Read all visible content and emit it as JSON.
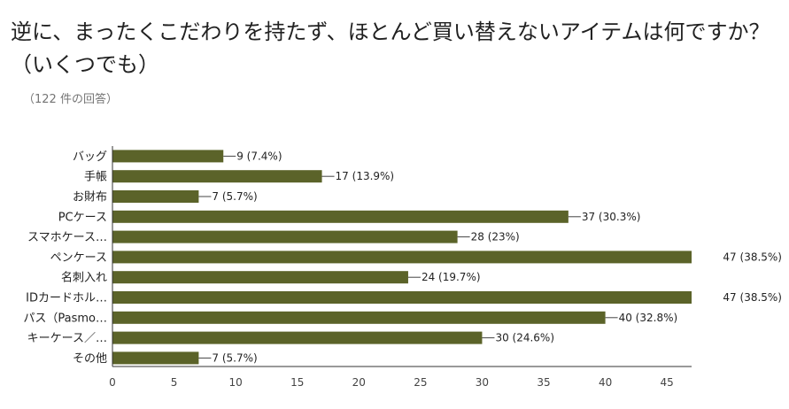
{
  "header": {
    "title": "逆に、まったくこだわりを持たず、ほとんど買い替えないアイテムは何ですか？（いくつでも）",
    "subtitle": "（122 件の回答）"
  },
  "colors": {
    "bar": "#5b6329",
    "axis": "#333333",
    "grid": "#e0e0e0"
  },
  "chart_data": {
    "type": "bar",
    "orientation": "horizontal",
    "title": "逆に、まったくこだわりを持たず、ほとんど買い替えないアイテムは何ですか？（いくつでも）",
    "subtitle": "（122 件の回答）",
    "categories": [
      "バッグ",
      "手帳",
      "お財布",
      "PCケース",
      "スマホケース…",
      "ペンケース",
      "名刺入れ",
      "IDカードホル…",
      "パス（Pasmo…",
      "キーケース／…",
      "その他"
    ],
    "values": [
      9,
      17,
      7,
      37,
      28,
      47,
      24,
      47,
      40,
      30,
      7
    ],
    "data_labels": [
      "9 (7.4%)",
      "17 (13.9%)",
      "7 (5.7%)",
      "37 (30.3%)",
      "28 (23%)",
      "47 (38.5%)",
      "24 (19.7%)",
      "47 (38.5%)",
      "40 (32.8%)",
      "30 (24.6%)",
      "7 (5.7%)"
    ],
    "xlim": [
      0,
      47
    ],
    "xticks": [
      0,
      5,
      10,
      15,
      20,
      25,
      30,
      35,
      40,
      45
    ],
    "grid": false,
    "legend": "none"
  }
}
